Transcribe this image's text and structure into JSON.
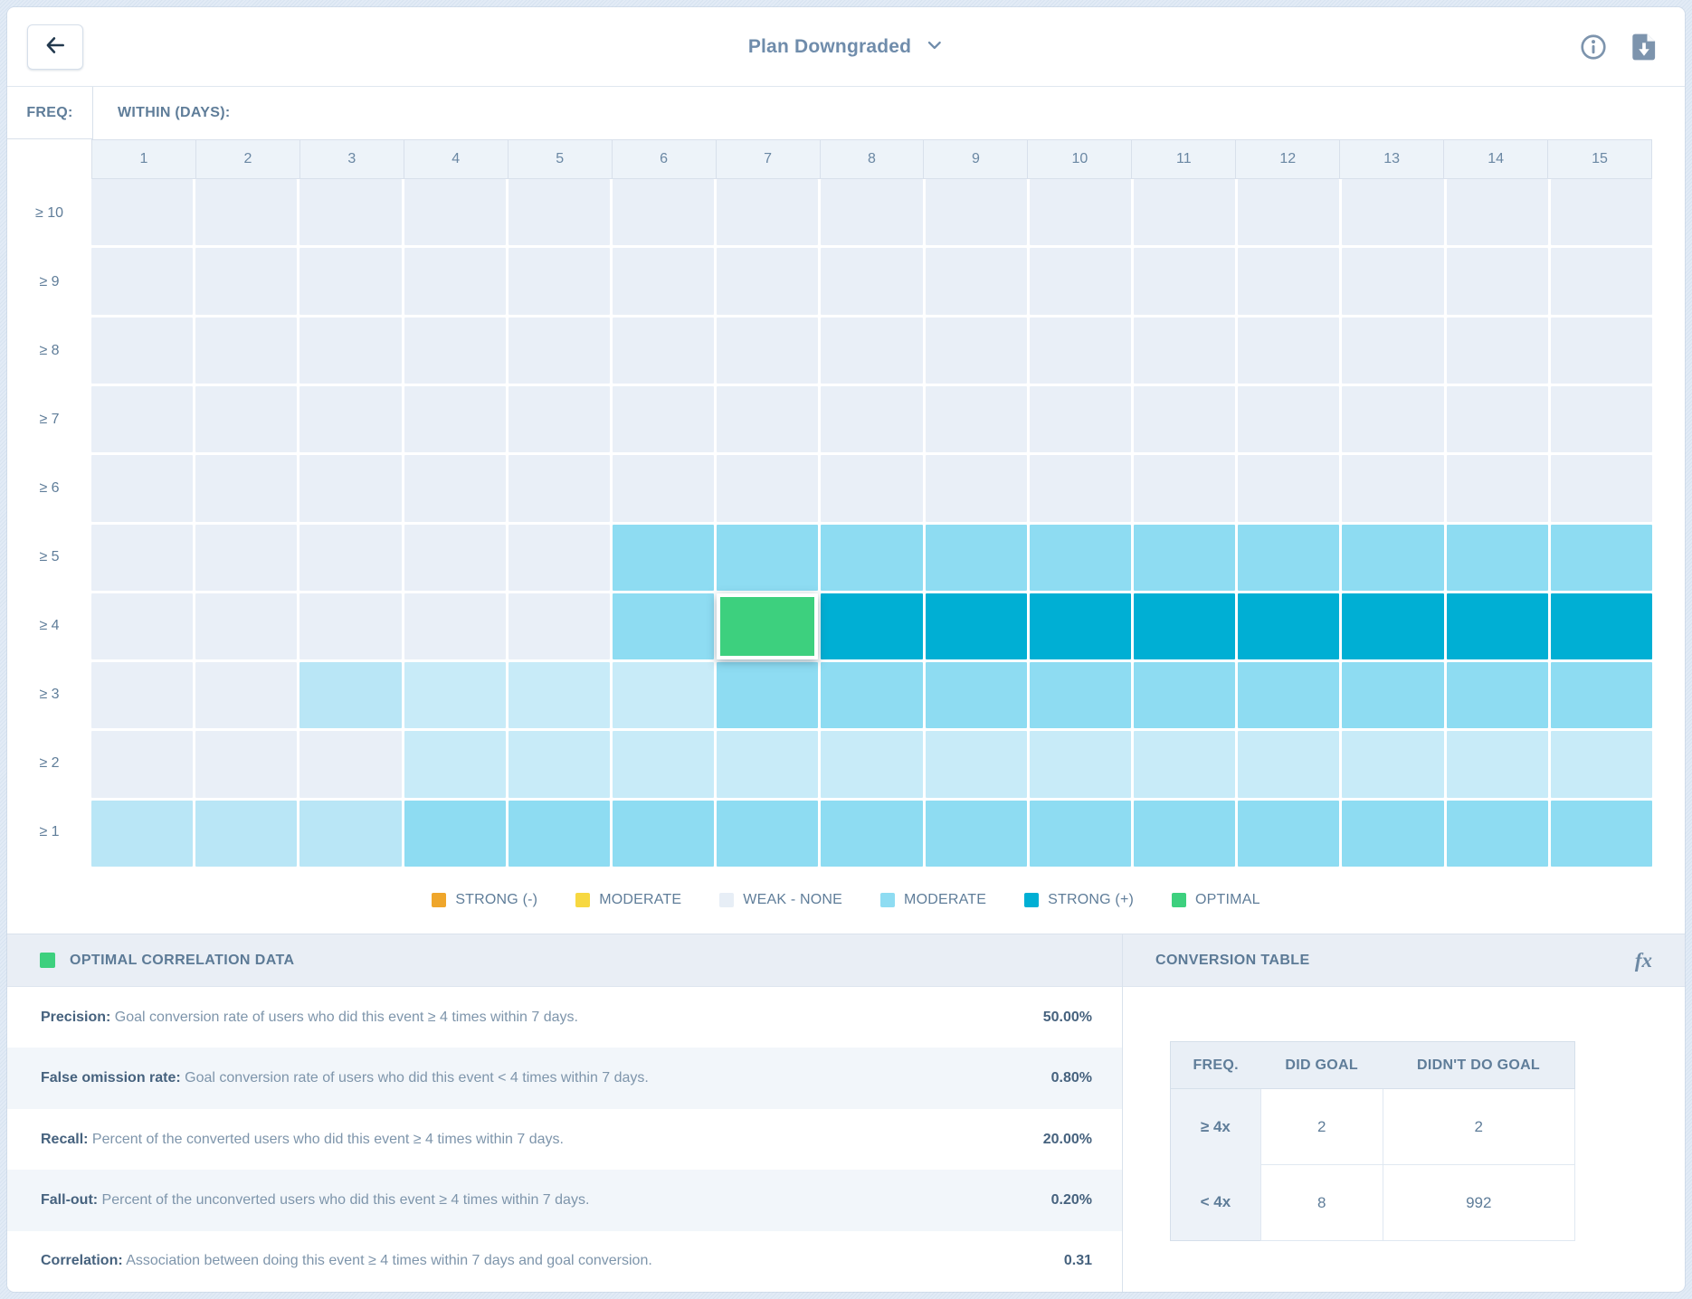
{
  "header": {
    "title": "Plan Downgraded"
  },
  "colors": {
    "weak": "#E9EFF7",
    "light": "#C8EBF8",
    "light2": "#B9E6F6",
    "moderate": "#8EDCF2",
    "strong": "#00AFD4",
    "optimal": "#3DD07E"
  },
  "grid": {
    "freq_label": "FREQ:",
    "within_label": "WITHIN (DAYS):",
    "columns": [
      "1",
      "2",
      "3",
      "4",
      "5",
      "6",
      "7",
      "8",
      "9",
      "10",
      "11",
      "12",
      "13",
      "14",
      "15"
    ],
    "rows": [
      {
        "label": "≥ 10",
        "cells": [
          "W",
          "W",
          "W",
          "W",
          "W",
          "W",
          "W",
          "W",
          "W",
          "W",
          "W",
          "W",
          "W",
          "W",
          "W"
        ]
      },
      {
        "label": "≥ 9",
        "cells": [
          "W",
          "W",
          "W",
          "W",
          "W",
          "W",
          "W",
          "W",
          "W",
          "W",
          "W",
          "W",
          "W",
          "W",
          "W"
        ]
      },
      {
        "label": "≥ 8",
        "cells": [
          "W",
          "W",
          "W",
          "W",
          "W",
          "W",
          "W",
          "W",
          "W",
          "W",
          "W",
          "W",
          "W",
          "W",
          "W"
        ]
      },
      {
        "label": "≥ 7",
        "cells": [
          "W",
          "W",
          "W",
          "W",
          "W",
          "W",
          "W",
          "W",
          "W",
          "W",
          "W",
          "W",
          "W",
          "W",
          "W"
        ]
      },
      {
        "label": "≥ 6",
        "cells": [
          "W",
          "W",
          "W",
          "W",
          "W",
          "W",
          "W",
          "W",
          "W",
          "W",
          "W",
          "W",
          "W",
          "W",
          "W"
        ]
      },
      {
        "label": "≥ 5",
        "cells": [
          "W",
          "W",
          "W",
          "W",
          "W",
          "M",
          "M",
          "M",
          "M",
          "M",
          "M",
          "M",
          "M",
          "M",
          "M"
        ]
      },
      {
        "label": "≥ 4",
        "cells": [
          "W",
          "W",
          "W",
          "W",
          "W",
          "M",
          "O",
          "S",
          "S",
          "S",
          "S",
          "S",
          "S",
          "S",
          "S"
        ]
      },
      {
        "label": "≥ 3",
        "cells": [
          "W",
          "W",
          "L2",
          "L",
          "L",
          "L",
          "M",
          "M",
          "M",
          "M",
          "M",
          "M",
          "M",
          "M",
          "M"
        ]
      },
      {
        "label": "≥ 2",
        "cells": [
          "W",
          "W",
          "W",
          "L",
          "L",
          "L",
          "L",
          "L",
          "L",
          "L",
          "L",
          "L",
          "L",
          "L",
          "L"
        ]
      },
      {
        "label": "≥ 1",
        "cells": [
          "L2",
          "L2",
          "L2",
          "M",
          "M",
          "M",
          "M",
          "M",
          "M",
          "M",
          "M",
          "M",
          "M",
          "M",
          "M"
        ]
      }
    ],
    "selected_cell": {
      "row": "≥ 4",
      "column": "7"
    }
  },
  "legend": {
    "items": [
      {
        "label": "STRONG (-)",
        "color": "#EFA62B",
        "pattern": "solid"
      },
      {
        "label": "MODERATE",
        "color": "#F7D841",
        "pattern": "solid"
      },
      {
        "label": "WEAK - NONE",
        "color": "#E7EEF6",
        "pattern": "solid"
      },
      {
        "label": "MODERATE",
        "color": "#8EDCF2",
        "pattern": "dots"
      },
      {
        "label": "STRONG (+)",
        "color": "#00AFD4",
        "pattern": "solid"
      },
      {
        "label": "OPTIMAL",
        "color": "#3DD07E",
        "pattern": "solid"
      }
    ]
  },
  "optimal_panel": {
    "title": "OPTIMAL CORRELATION DATA",
    "stats": [
      {
        "label": "Precision:",
        "desc": "Goal conversion rate of users who did this event ≥ 4 times within 7 days.",
        "value": "50.00%"
      },
      {
        "label": "False omission rate:",
        "desc": "Goal conversion rate of users who did this event < 4 times within 7 days.",
        "value": "0.80%"
      },
      {
        "label": "Recall:",
        "desc": "Percent of the converted users who did this event ≥ 4 times within 7 days.",
        "value": "20.00%"
      },
      {
        "label": "Fall-out:",
        "desc": "Percent of the unconverted users who did this event ≥ 4 times within 7 days.",
        "value": "0.20%"
      },
      {
        "label": "Correlation:",
        "desc": "Association between doing this event ≥ 4 times within 7 days and goal conversion.",
        "value": "0.31"
      }
    ]
  },
  "conversion_panel": {
    "title": "CONVERSION TABLE",
    "fx_label": "fx",
    "table": {
      "headers": [
        "FREQ.",
        "DID GOAL",
        "DIDN'T DO GOAL"
      ],
      "rows": [
        {
          "freq": "≥ 4x",
          "did": "2",
          "didnt": "2"
        },
        {
          "freq": "< 4x",
          "did": "8",
          "didnt": "992"
        }
      ]
    }
  }
}
